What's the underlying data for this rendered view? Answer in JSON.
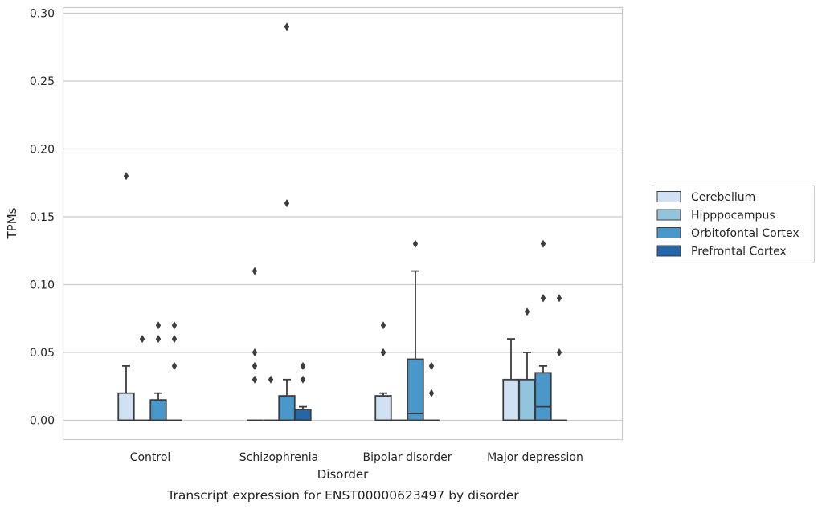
{
  "chart_data": {
    "type": "box",
    "caption": "Transcript expression for ENST00000623497 by disorder",
    "xlabel": "Disorder",
    "ylabel": "TPMs",
    "ylim": [
      -0.014,
      0.305
    ],
    "yticks": [
      "0.00",
      "0.05",
      "0.10",
      "0.15",
      "0.20",
      "0.25",
      "0.30"
    ],
    "grid": true,
    "legend_position": "right",
    "categories": [
      "Control",
      "Schizophrenia",
      "Bipolar disorder",
      "Major depression"
    ],
    "series": [
      {
        "name": "Cerebellum",
        "color": "#cfe1f2",
        "boxes": [
          {
            "min": 0,
            "q1": 0,
            "median": 0,
            "q3": 0.02,
            "max": 0.04,
            "outliers": [
              0.18
            ]
          },
          {
            "min": 0,
            "q1": 0,
            "median": 0,
            "q3": 0,
            "max": 0,
            "outliers": [
              0.03,
              0.04,
              0.05,
              0.11
            ]
          },
          {
            "min": 0,
            "q1": 0,
            "median": 0,
            "q3": 0.018,
            "max": 0.02,
            "outliers": [
              0.05,
              0.05,
              0.07
            ]
          },
          {
            "min": 0,
            "q1": 0,
            "median": 0,
            "q3": 0.03,
            "max": 0.06,
            "outliers": []
          }
        ]
      },
      {
        "name": "Hipppocampus",
        "color": "#93c4de",
        "boxes": [
          {
            "min": 0,
            "q1": 0,
            "median": 0,
            "q3": 0,
            "max": 0,
            "outliers": [
              0.06
            ]
          },
          {
            "min": 0,
            "q1": 0,
            "median": 0,
            "q3": 0,
            "max": 0,
            "outliers": [
              0.03
            ]
          },
          {
            "min": 0,
            "q1": 0,
            "median": 0,
            "q3": 0,
            "max": 0,
            "outliers": []
          },
          {
            "min": 0,
            "q1": 0,
            "median": 0,
            "q3": 0.03,
            "max": 0.05,
            "outliers": [
              0.08
            ]
          }
        ]
      },
      {
        "name": "Orbitofontal Cortex",
        "color": "#4a98c9",
        "boxes": [
          {
            "min": 0,
            "q1": 0,
            "median": 0,
            "q3": 0.015,
            "max": 0.02,
            "outliers": [
              0.06,
              0.07
            ]
          },
          {
            "min": 0,
            "q1": 0,
            "median": 0,
            "q3": 0.018,
            "max": 0.03,
            "outliers": [
              0.16,
              0.29
            ]
          },
          {
            "min": 0,
            "q1": 0,
            "median": 0.005,
            "q3": 0.045,
            "max": 0.11,
            "outliers": [
              0.13
            ]
          },
          {
            "min": 0,
            "q1": 0,
            "median": 0.01,
            "q3": 0.035,
            "max": 0.04,
            "outliers": [
              0.09,
              0.09,
              0.13
            ]
          }
        ]
      },
      {
        "name": "Prefrontal Cortex",
        "color": "#2566a9",
        "boxes": [
          {
            "min": 0,
            "q1": 0,
            "median": 0,
            "q3": 0,
            "max": 0,
            "outliers": [
              0.04,
              0.06,
              0.07
            ]
          },
          {
            "min": 0,
            "q1": 0,
            "median": 0,
            "q3": 0.008,
            "max": 0.01,
            "outliers": [
              0.03,
              0.04
            ]
          },
          {
            "min": 0,
            "q1": 0,
            "median": 0,
            "q3": 0,
            "max": 0,
            "outliers": [
              0.02,
              0.04
            ]
          },
          {
            "min": 0,
            "q1": 0,
            "median": 0,
            "q3": 0,
            "max": 0,
            "outliers": [
              0.05,
              0.09
            ]
          }
        ]
      }
    ]
  }
}
